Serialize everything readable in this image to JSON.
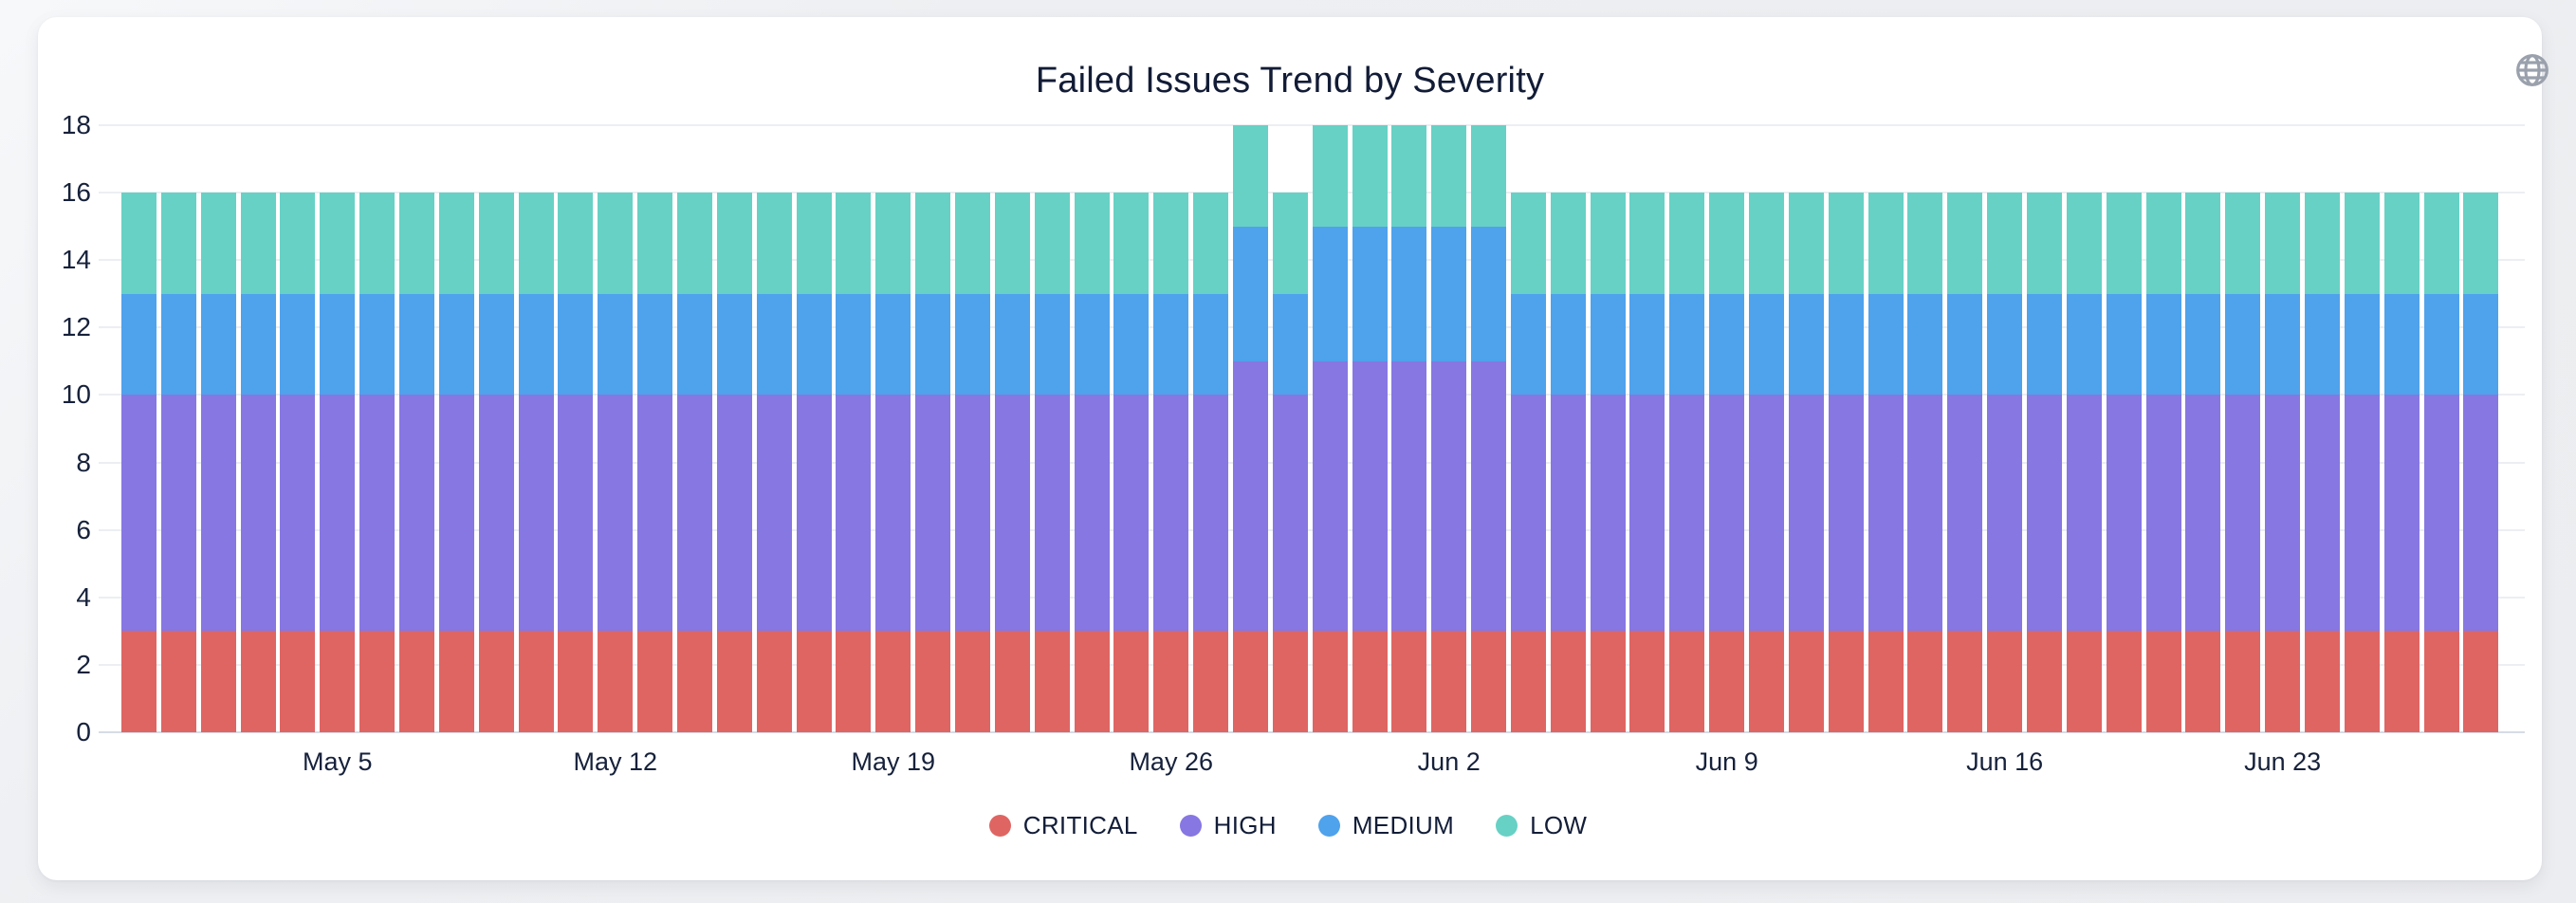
{
  "page": {
    "background_color": "#edeff2",
    "card_color": "#ffffff"
  },
  "header": {
    "globe_icon": "globe-icon",
    "globe_icon_color": "#9aa1ac"
  },
  "text_colors": {
    "title": "#121c36",
    "axis_ticks": "#16213b",
    "legend": "#121d38"
  },
  "chart_data": {
    "type": "bar",
    "stacked": true,
    "title": "Failed Issues Trend by Severity",
    "xlabel": "",
    "ylabel": "",
    "ylim": [
      0,
      18
    ],
    "yticks": [
      0,
      2,
      4,
      6,
      8,
      10,
      12,
      14,
      16,
      18
    ],
    "grid": true,
    "legend_position": "bottom",
    "categories": [
      "Apr 30",
      "May 1",
      "May 2",
      "May 3",
      "May 4",
      "May 5",
      "May 6",
      "May 7",
      "May 8",
      "May 9",
      "May 10",
      "May 11",
      "May 12",
      "May 13",
      "May 14",
      "May 15",
      "May 16",
      "May 17",
      "May 18",
      "May 19",
      "May 20",
      "May 21",
      "May 22",
      "May 23",
      "May 24",
      "May 25",
      "May 26",
      "May 27",
      "May 28",
      "May 29",
      "May 30",
      "May 31",
      "Jun 1",
      "Jun 2",
      "Jun 3",
      "Jun 4",
      "Jun 5",
      "Jun 6",
      "Jun 7",
      "Jun 8",
      "Jun 9",
      "Jun 10",
      "Jun 11",
      "Jun 12",
      "Jun 13",
      "Jun 14",
      "Jun 15",
      "Jun 16",
      "Jun 17",
      "Jun 18",
      "Jun 19",
      "Jun 20",
      "Jun 21",
      "Jun 22",
      "Jun 23",
      "Jun 24",
      "Jun 25",
      "Jun 26",
      "Jun 27",
      "Jun 28"
    ],
    "xtick_labels": [
      "May 5",
      "May 12",
      "May 19",
      "May 26",
      "Jun 2",
      "Jun 9",
      "Jun 16",
      "Jun 23"
    ],
    "xtick_indices": [
      5,
      12,
      19,
      26,
      33,
      40,
      47,
      54
    ],
    "series": [
      {
        "name": "CRITICAL",
        "color": "#df6563",
        "values": [
          3,
          3,
          3,
          3,
          3,
          3,
          3,
          3,
          3,
          3,
          3,
          3,
          3,
          3,
          3,
          3,
          3,
          3,
          3,
          3,
          3,
          3,
          3,
          3,
          3,
          3,
          3,
          3,
          3,
          3,
          3,
          3,
          3,
          3,
          3,
          3,
          3,
          3,
          3,
          3,
          3,
          3,
          3,
          3,
          3,
          3,
          3,
          3,
          3,
          3,
          3,
          3,
          3,
          3,
          3,
          3,
          3,
          3,
          3,
          3
        ]
      },
      {
        "name": "HIGH",
        "color": "#8677e2",
        "values": [
          7,
          7,
          7,
          7,
          7,
          7,
          7,
          7,
          7,
          7,
          7,
          7,
          7,
          7,
          7,
          7,
          7,
          7,
          7,
          7,
          7,
          7,
          7,
          7,
          7,
          7,
          7,
          7,
          8,
          7,
          8,
          8,
          8,
          8,
          8,
          7,
          7,
          7,
          7,
          7,
          7,
          7,
          7,
          7,
          7,
          7,
          7,
          7,
          7,
          7,
          7,
          7,
          7,
          7,
          7,
          7,
          7,
          7,
          7,
          7
        ]
      },
      {
        "name": "MEDIUM",
        "color": "#4fa2ec",
        "values": [
          3,
          3,
          3,
          3,
          3,
          3,
          3,
          3,
          3,
          3,
          3,
          3,
          3,
          3,
          3,
          3,
          3,
          3,
          3,
          3,
          3,
          3,
          3,
          3,
          3,
          3,
          3,
          3,
          4,
          3,
          4,
          4,
          4,
          4,
          4,
          3,
          3,
          3,
          3,
          3,
          3,
          3,
          3,
          3,
          3,
          3,
          3,
          3,
          3,
          3,
          3,
          3,
          3,
          3,
          3,
          3,
          3,
          3,
          3,
          3
        ]
      },
      {
        "name": "LOW",
        "color": "#67d1c5",
        "values": [
          3,
          3,
          3,
          3,
          3,
          3,
          3,
          3,
          3,
          3,
          3,
          3,
          3,
          3,
          3,
          3,
          3,
          3,
          3,
          3,
          3,
          3,
          3,
          3,
          3,
          3,
          3,
          3,
          3,
          3,
          3,
          3,
          3,
          3,
          3,
          3,
          3,
          3,
          3,
          3,
          3,
          3,
          3,
          3,
          3,
          3,
          3,
          3,
          3,
          3,
          3,
          3,
          3,
          3,
          3,
          3,
          3,
          3,
          3,
          3
        ]
      }
    ]
  }
}
